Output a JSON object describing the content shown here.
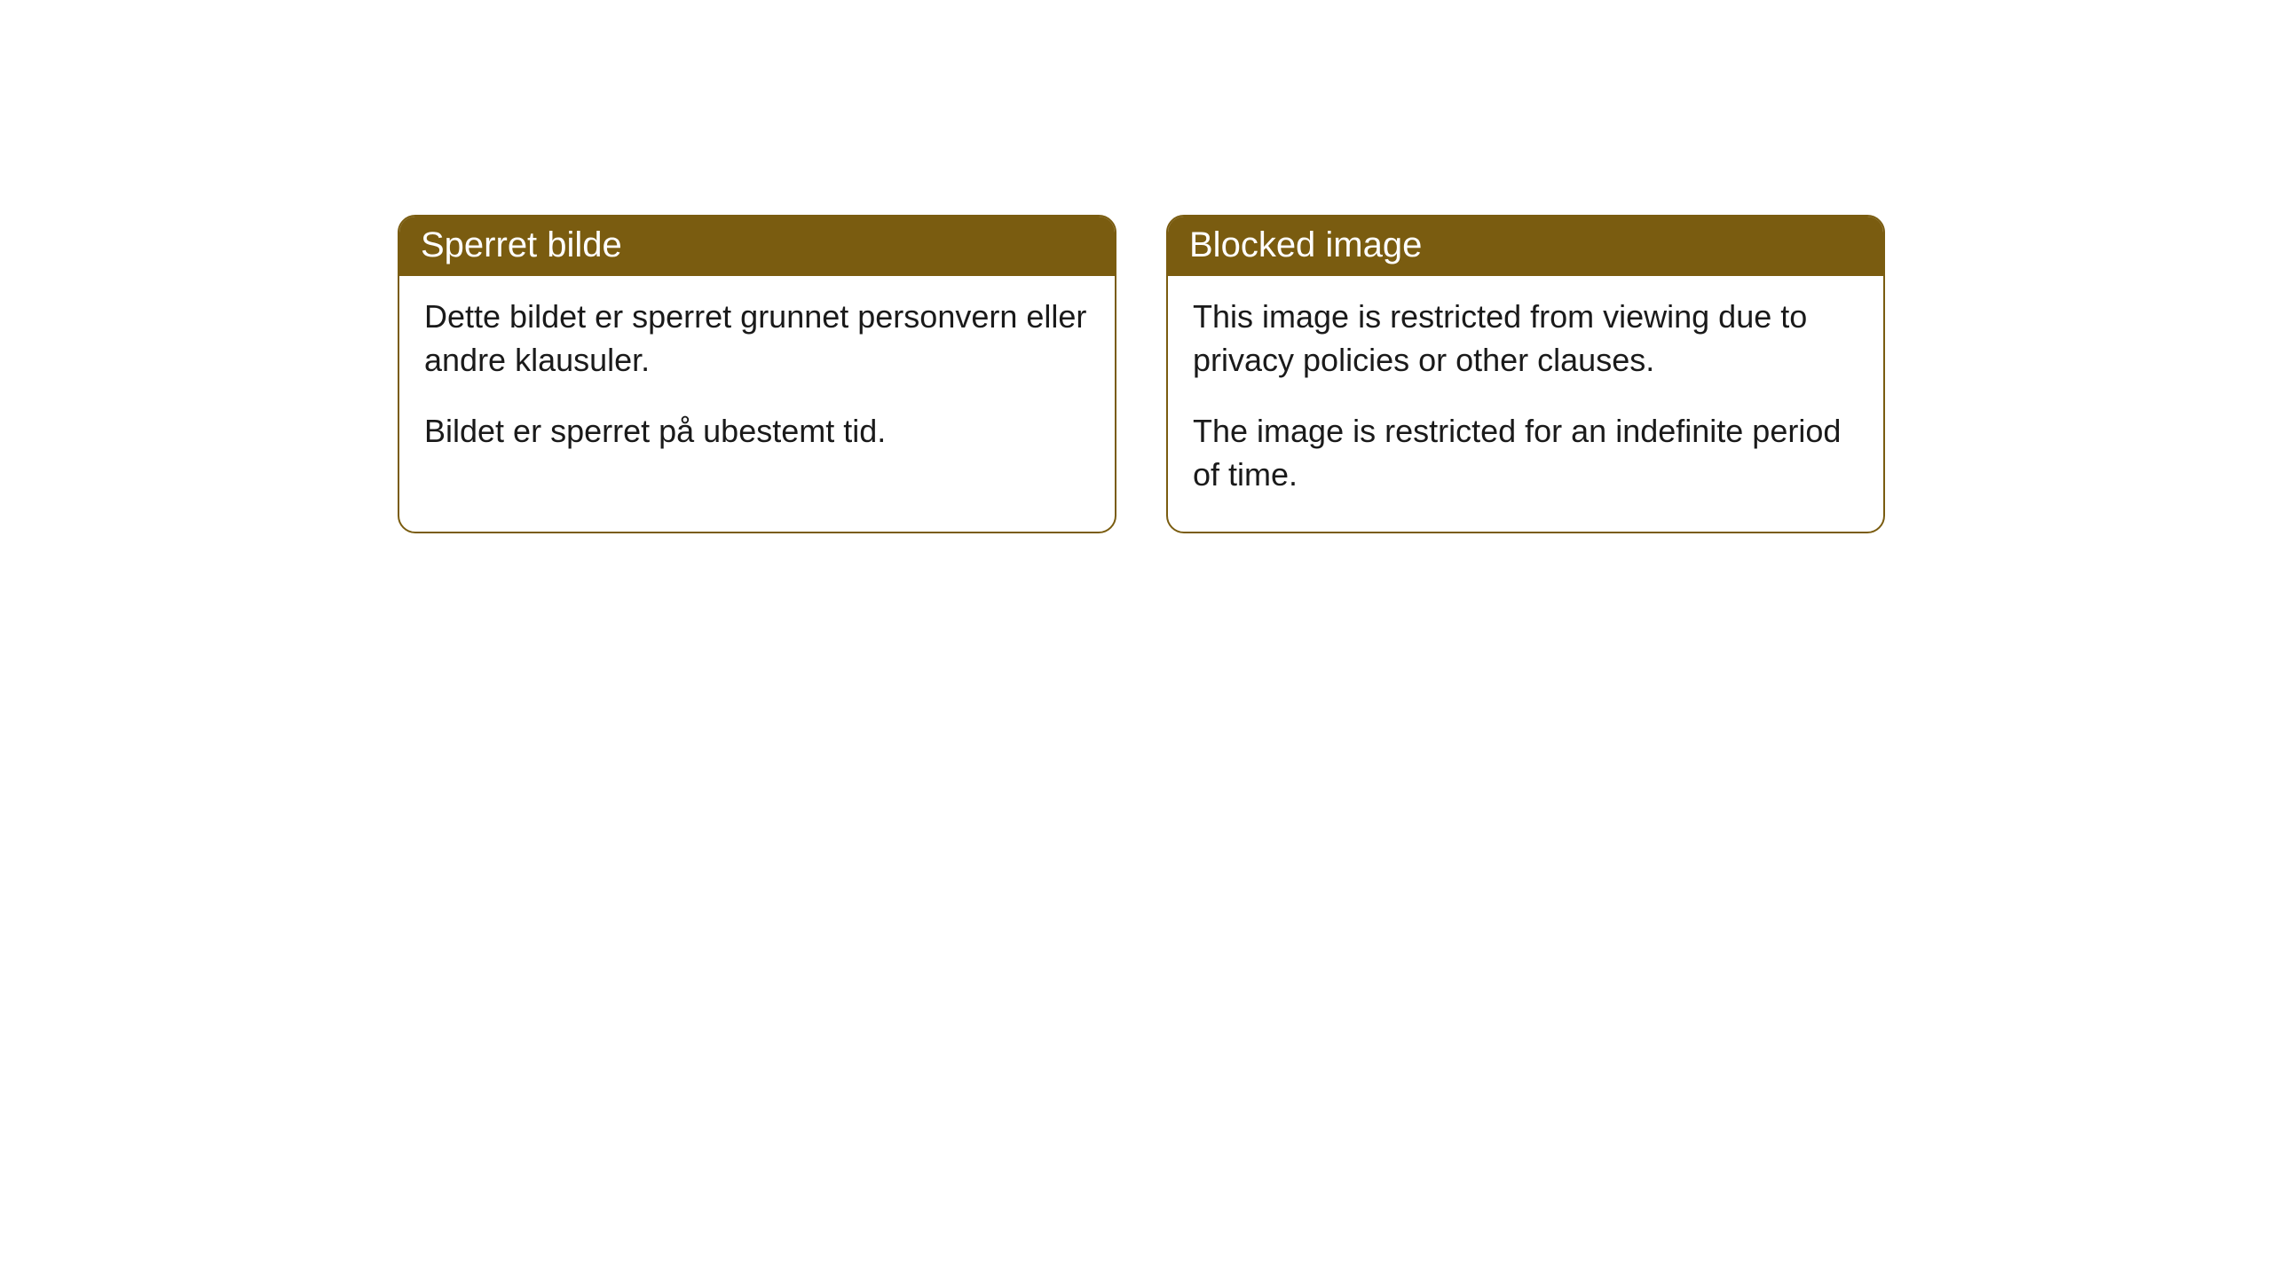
{
  "cards": [
    {
      "title": "Sperret bilde",
      "paragraph1": "Dette bildet er sperret grunnet personvern eller andre klausuler.",
      "paragraph2": "Bildet er sperret på ubestemt tid."
    },
    {
      "title": "Blocked image",
      "paragraph1": "This image is restricted from viewing due to privacy policies or other clauses.",
      "paragraph2": "The image is restricted for an indefinite period of time."
    }
  ],
  "style": {
    "header_bg_color": "#7a5c10",
    "header_text_color": "#ffffff",
    "border_color": "#7a5c10",
    "body_bg_color": "#ffffff",
    "body_text_color": "#1a1a1a",
    "border_radius": 20,
    "header_fontsize": 40,
    "body_fontsize": 36
  }
}
